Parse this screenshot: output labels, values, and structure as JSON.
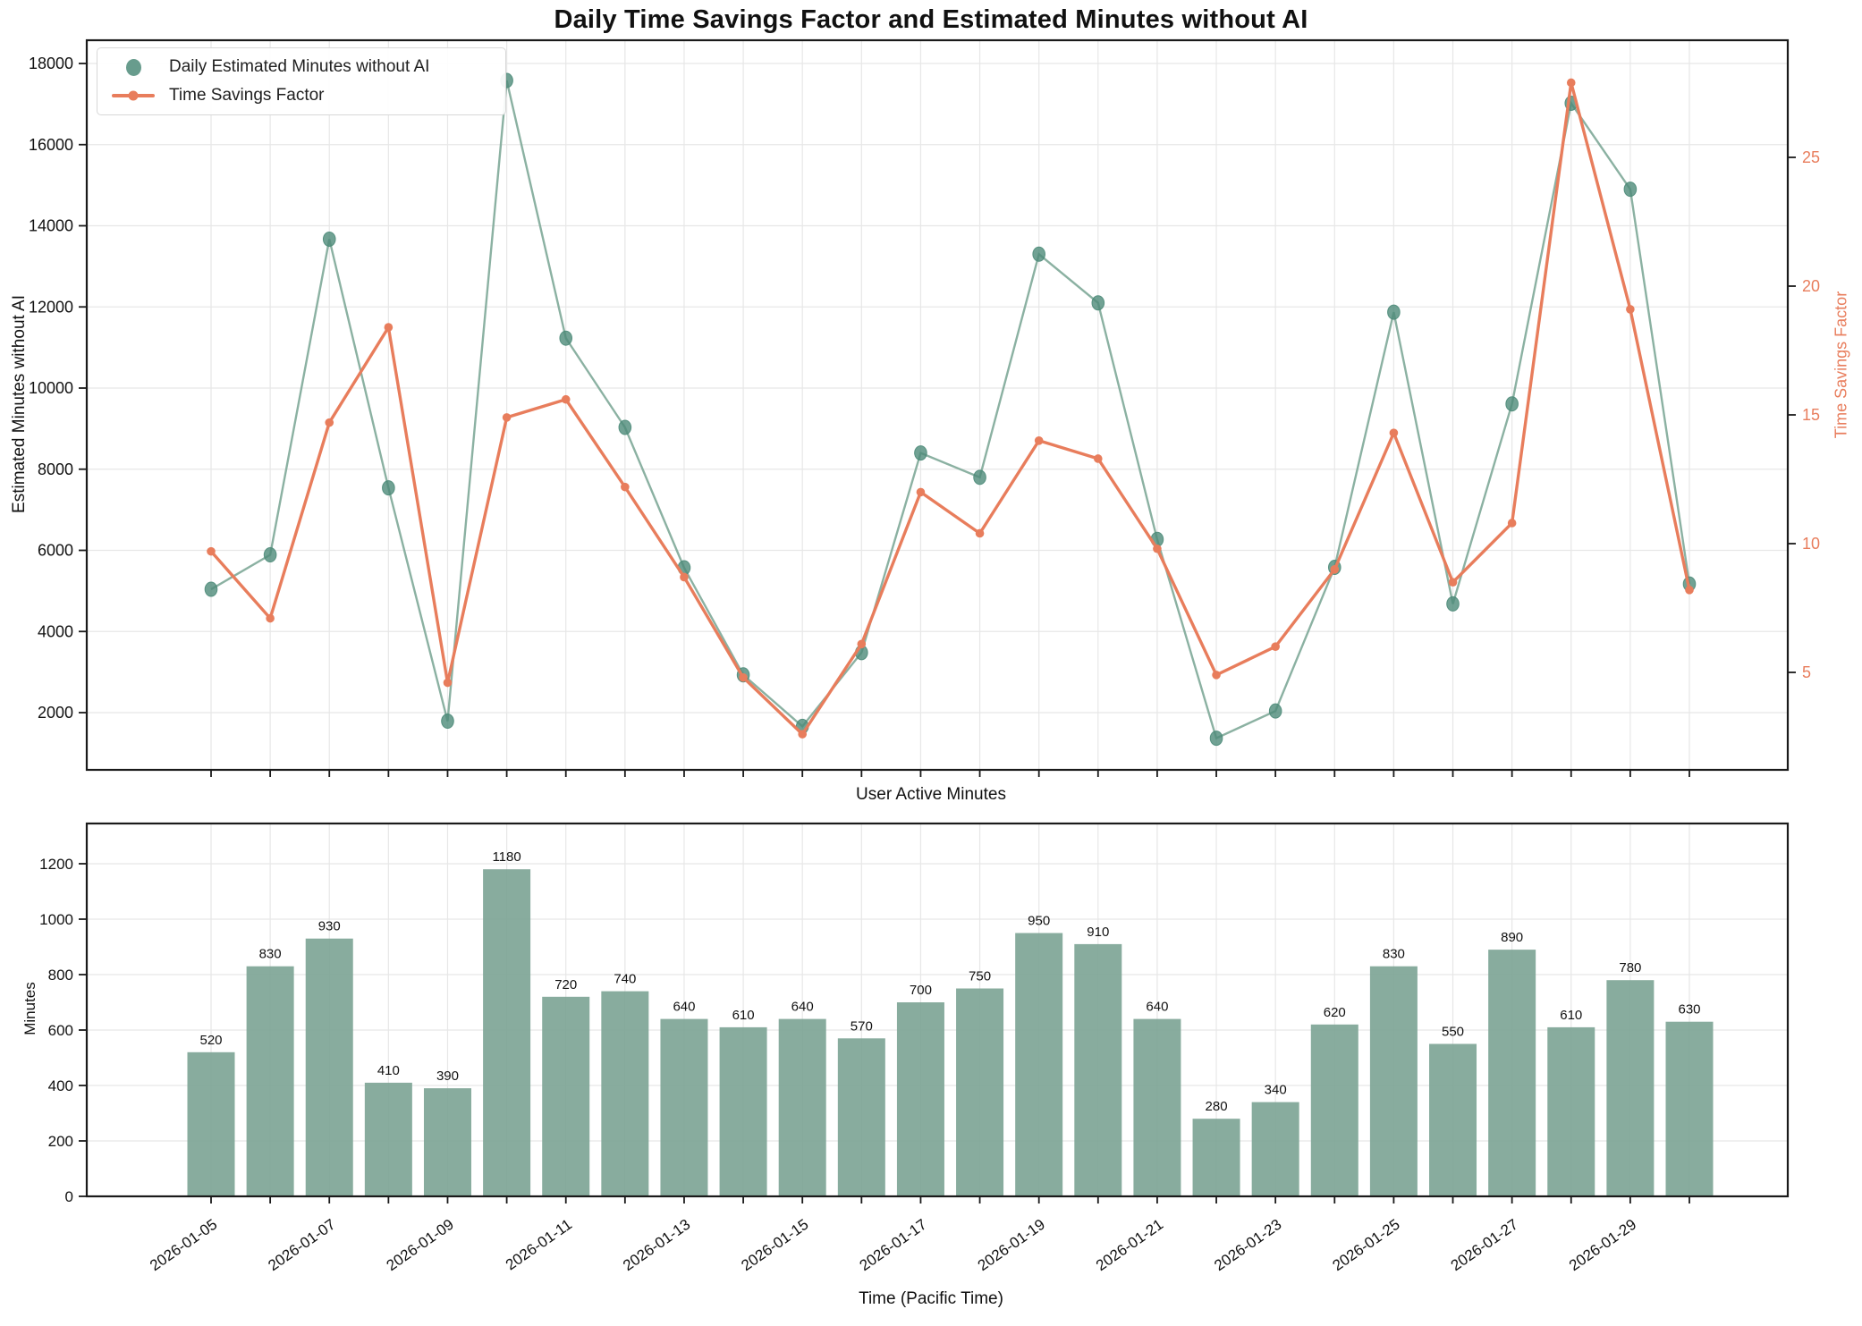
{
  "title": "Daily Time Savings Factor and Estimated Minutes without AI",
  "labels": {
    "ylabel_left_top": "Estimated Minutes without AI",
    "ylabel_right_top": "Time Savings Factor",
    "subplot_title": "User Active Minutes",
    "ylabel_bottom": "Minutes",
    "xlabel": "Time (Pacific Time)"
  },
  "legend": {
    "items": [
      {
        "label": "Daily Estimated Minutes without AI",
        "marker": "green-dot"
      },
      {
        "label": "Time Savings Factor",
        "marker": "orange-line-dot"
      }
    ]
  },
  "colors": {
    "green_line": "#7ea998",
    "green_marker": "#4d8b79",
    "orange": "#e87d5c",
    "bar_fill": "#7ea596",
    "grid": "#e7e7e7",
    "spine": "#1a1a1a",
    "text": "#111111"
  },
  "chart_data": [
    {
      "type": "line",
      "title": "",
      "x": [
        "2026-01-05",
        "2026-01-06",
        "2026-01-07",
        "2026-01-08",
        "2026-01-09",
        "2026-01-10",
        "2026-01-11",
        "2026-01-12",
        "2026-01-13",
        "2026-01-14",
        "2026-01-15",
        "2026-01-16",
        "2026-01-17",
        "2026-01-18",
        "2026-01-19",
        "2026-01-20",
        "2026-01-21",
        "2026-01-22",
        "2026-01-23",
        "2026-01-24",
        "2026-01-25",
        "2026-01-26",
        "2026-01-27",
        "2026-01-28",
        "2026-01-29",
        "2026-01-30"
      ],
      "series": [
        {
          "name": "Daily Estimated Minutes without AI",
          "axis": "left",
          "values": [
            5040,
            5890,
            13670,
            7540,
            1790,
            17580,
            11230,
            9030,
            5570,
            2930,
            1660,
            3480,
            8400,
            7800,
            13300,
            12100,
            6270,
            1370,
            2040,
            5580,
            11870,
            4680,
            9610,
            17020,
            14900,
            5170
          ]
        },
        {
          "name": "Time Savings Factor",
          "axis": "right",
          "values": [
            9.7,
            7.1,
            14.7,
            18.4,
            4.6,
            14.9,
            15.6,
            12.2,
            8.7,
            4.8,
            2.6,
            6.1,
            12.0,
            10.4,
            14.0,
            13.3,
            9.8,
            4.9,
            6.0,
            9.0,
            14.3,
            8.5,
            10.8,
            27.9,
            19.1,
            8.2
          ]
        }
      ],
      "ylabel_left": "Estimated Minutes without AI",
      "ylabel_right": "Time Savings Factor",
      "yticks_left": [
        2000,
        4000,
        6000,
        8000,
        10000,
        12000,
        14000,
        16000,
        18000
      ],
      "yticks_right": [
        5,
        10,
        15,
        20,
        25
      ],
      "ylim_left": [
        600,
        18600
      ],
      "ylim_right": [
        1.2,
        29.5
      ],
      "grid": true,
      "legend_position": "upper-left"
    },
    {
      "type": "bar",
      "title": "User Active Minutes",
      "categories": [
        "2026-01-05",
        "2026-01-06",
        "2026-01-07",
        "2026-01-08",
        "2026-01-09",
        "2026-01-10",
        "2026-01-11",
        "2026-01-12",
        "2026-01-13",
        "2026-01-14",
        "2026-01-15",
        "2026-01-16",
        "2026-01-17",
        "2026-01-18",
        "2026-01-19",
        "2026-01-20",
        "2026-01-21",
        "2026-01-22",
        "2026-01-23",
        "2026-01-24",
        "2026-01-25",
        "2026-01-26",
        "2026-01-27",
        "2026-01-28",
        "2026-01-29",
        "2026-01-30"
      ],
      "values": [
        520,
        830,
        930,
        410,
        390,
        1180,
        720,
        740,
        640,
        610,
        640,
        570,
        700,
        750,
        950,
        910,
        640,
        280,
        340,
        620,
        830,
        550,
        890,
        610,
        780,
        630
      ],
      "bar_labels": [
        520,
        830,
        930,
        410,
        390,
        1180,
        720,
        740,
        640,
        610,
        640,
        570,
        700,
        750,
        950,
        910,
        640,
        280,
        340,
        620,
        830,
        550,
        890,
        610,
        780,
        630
      ],
      "xtick_labels": [
        "2026-01-05",
        "2026-01-07",
        "2026-01-09",
        "2026-01-11",
        "2026-01-13",
        "2026-01-15",
        "2026-01-17",
        "2026-01-19",
        "2026-01-21",
        "2026-01-23",
        "2026-01-25",
        "2026-01-27",
        "2026-01-29"
      ],
      "xlabel": "Time (Pacific Time)",
      "ylabel": "Minutes",
      "yticks": [
        0,
        200,
        400,
        600,
        800,
        1000,
        1200
      ],
      "ylim": [
        0,
        1345
      ],
      "grid": true
    }
  ]
}
